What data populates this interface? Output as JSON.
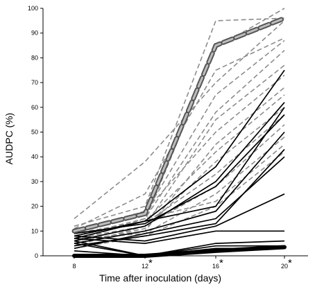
{
  "chart_data": {
    "type": "line",
    "xlabel": "Time after inoculation (days)",
    "ylabel": "AUDPC (%)",
    "x": [
      8,
      12,
      16,
      20
    ],
    "xticks": [
      "8",
      "12",
      "16",
      "20"
    ],
    "yticks": [
      "0",
      "10",
      "20",
      "30",
      "40",
      "50",
      "60",
      "70",
      "80",
      "90",
      "100"
    ],
    "ylim": [
      0,
      100
    ],
    "grid": false,
    "significance_markers": [
      {
        "x": "12",
        "label": "*"
      },
      {
        "x": "16",
        "label": "*"
      },
      {
        "x": "20",
        "label": "*"
      }
    ],
    "styles": {
      "dashed": {
        "color": "#8c8c8c",
        "line": "dashed"
      },
      "solid": {
        "color": "#000000",
        "line": "solid"
      },
      "dashed_mean": {
        "color": "#777777",
        "line": "bold-dashed"
      },
      "solid_mean": {
        "color": "#000000",
        "line": "bold-solid"
      }
    },
    "series": [
      {
        "style": "dashed_mean",
        "values": [
          10,
          17,
          85,
          96
        ]
      },
      {
        "style": "dashed",
        "values": [
          12,
          20,
          95,
          96
        ]
      },
      {
        "style": "dashed",
        "values": [
          9,
          14,
          84,
          100
        ]
      },
      {
        "style": "dashed",
        "values": [
          15,
          38,
          70,
          95
        ]
      },
      {
        "style": "dashed",
        "values": [
          11,
          25,
          75,
          88
        ]
      },
      {
        "style": "dashed",
        "values": [
          9,
          17,
          65,
          87
        ]
      },
      {
        "style": "dashed",
        "values": [
          8,
          15,
          58,
          83
        ]
      },
      {
        "style": "dashed",
        "values": [
          7,
          12,
          55,
          77
        ]
      },
      {
        "style": "dashed",
        "values": [
          10,
          18,
          50,
          73
        ]
      },
      {
        "style": "dashed",
        "values": [
          6,
          10,
          45,
          68
        ]
      },
      {
        "style": "dashed",
        "values": [
          8,
          14,
          42,
          65
        ]
      },
      {
        "style": "dashed",
        "values": [
          5,
          11,
          38,
          60
        ]
      },
      {
        "style": "dashed",
        "values": [
          9,
          13,
          33,
          57
        ]
      },
      {
        "style": "dashed",
        "values": [
          4,
          12,
          28,
          53
        ]
      },
      {
        "style": "dashed",
        "values": [
          7,
          9,
          25,
          48
        ]
      },
      {
        "style": "dashed",
        "values": [
          6,
          15,
          22,
          45
        ]
      },
      {
        "style": "dashed",
        "values": [
          3,
          8,
          20,
          42
        ]
      },
      {
        "style": "solid",
        "values": [
          8,
          14,
          36,
          75
        ]
      },
      {
        "style": "solid",
        "values": [
          6,
          12,
          30,
          62
        ]
      },
      {
        "style": "solid",
        "values": [
          9,
          13,
          28,
          57
        ]
      },
      {
        "style": "solid",
        "values": [
          5,
          10,
          18,
          50
        ]
      },
      {
        "style": "solid",
        "values": [
          7,
          14,
          20,
          60
        ]
      },
      {
        "style": "solid",
        "values": [
          4,
          8,
          13,
          43
        ]
      },
      {
        "style": "solid",
        "values": [
          3,
          9,
          15,
          40
        ]
      },
      {
        "style": "solid",
        "values": [
          8,
          6,
          12,
          25
        ]
      },
      {
        "style": "solid",
        "values": [
          5,
          0,
          5,
          6
        ]
      },
      {
        "style": "solid",
        "values": [
          7,
          5,
          10,
          10
        ]
      },
      {
        "style": "solid",
        "values": [
          2,
          0,
          3,
          3
        ]
      },
      {
        "style": "solid",
        "values": [
          6,
          0,
          4,
          4
        ]
      },
      {
        "style": "solid",
        "values": [
          0,
          0,
          2,
          3
        ]
      },
      {
        "style": "solid_mean",
        "values": [
          0,
          0,
          2,
          3.5
        ]
      }
    ]
  }
}
